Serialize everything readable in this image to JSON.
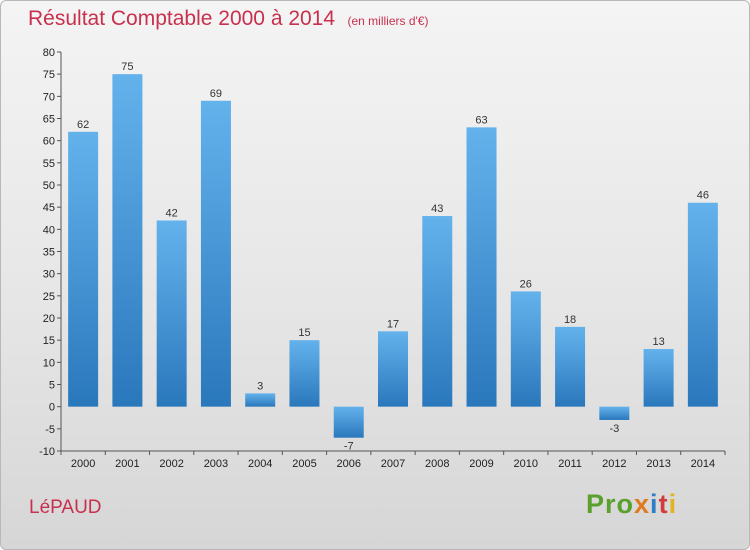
{
  "header": {
    "title": "Résultat Comptable 2000 à 2014",
    "unit": "(en milliers d'€)"
  },
  "footer": {
    "commune": "LéPAUD",
    "logo": [
      "Pro",
      "x",
      "i",
      "t",
      "i"
    ]
  },
  "colors": {
    "bar_top": "#64b2ec",
    "bar_bottom": "#2a78bc",
    "title": "#c8304d"
  },
  "chart_data": {
    "type": "bar",
    "title": "Résultat Comptable 2000 à 2014",
    "ylabel": "",
    "xlabel": "",
    "categories": [
      "2000",
      "2001",
      "2002",
      "2003",
      "2004",
      "2005",
      "2006",
      "2007",
      "2008",
      "2009",
      "2010",
      "2011",
      "2012",
      "2013",
      "2014"
    ],
    "values": [
      62,
      75,
      42,
      69,
      3,
      15,
      -7,
      17,
      43,
      63,
      26,
      18,
      -3,
      13,
      46
    ],
    "ylim": [
      -10,
      80
    ],
    "yticks": [
      -10,
      -5,
      0,
      5,
      10,
      15,
      20,
      25,
      30,
      35,
      40,
      45,
      50,
      55,
      60,
      65,
      70,
      75,
      80
    ],
    "grid": false,
    "data_labels": true
  }
}
